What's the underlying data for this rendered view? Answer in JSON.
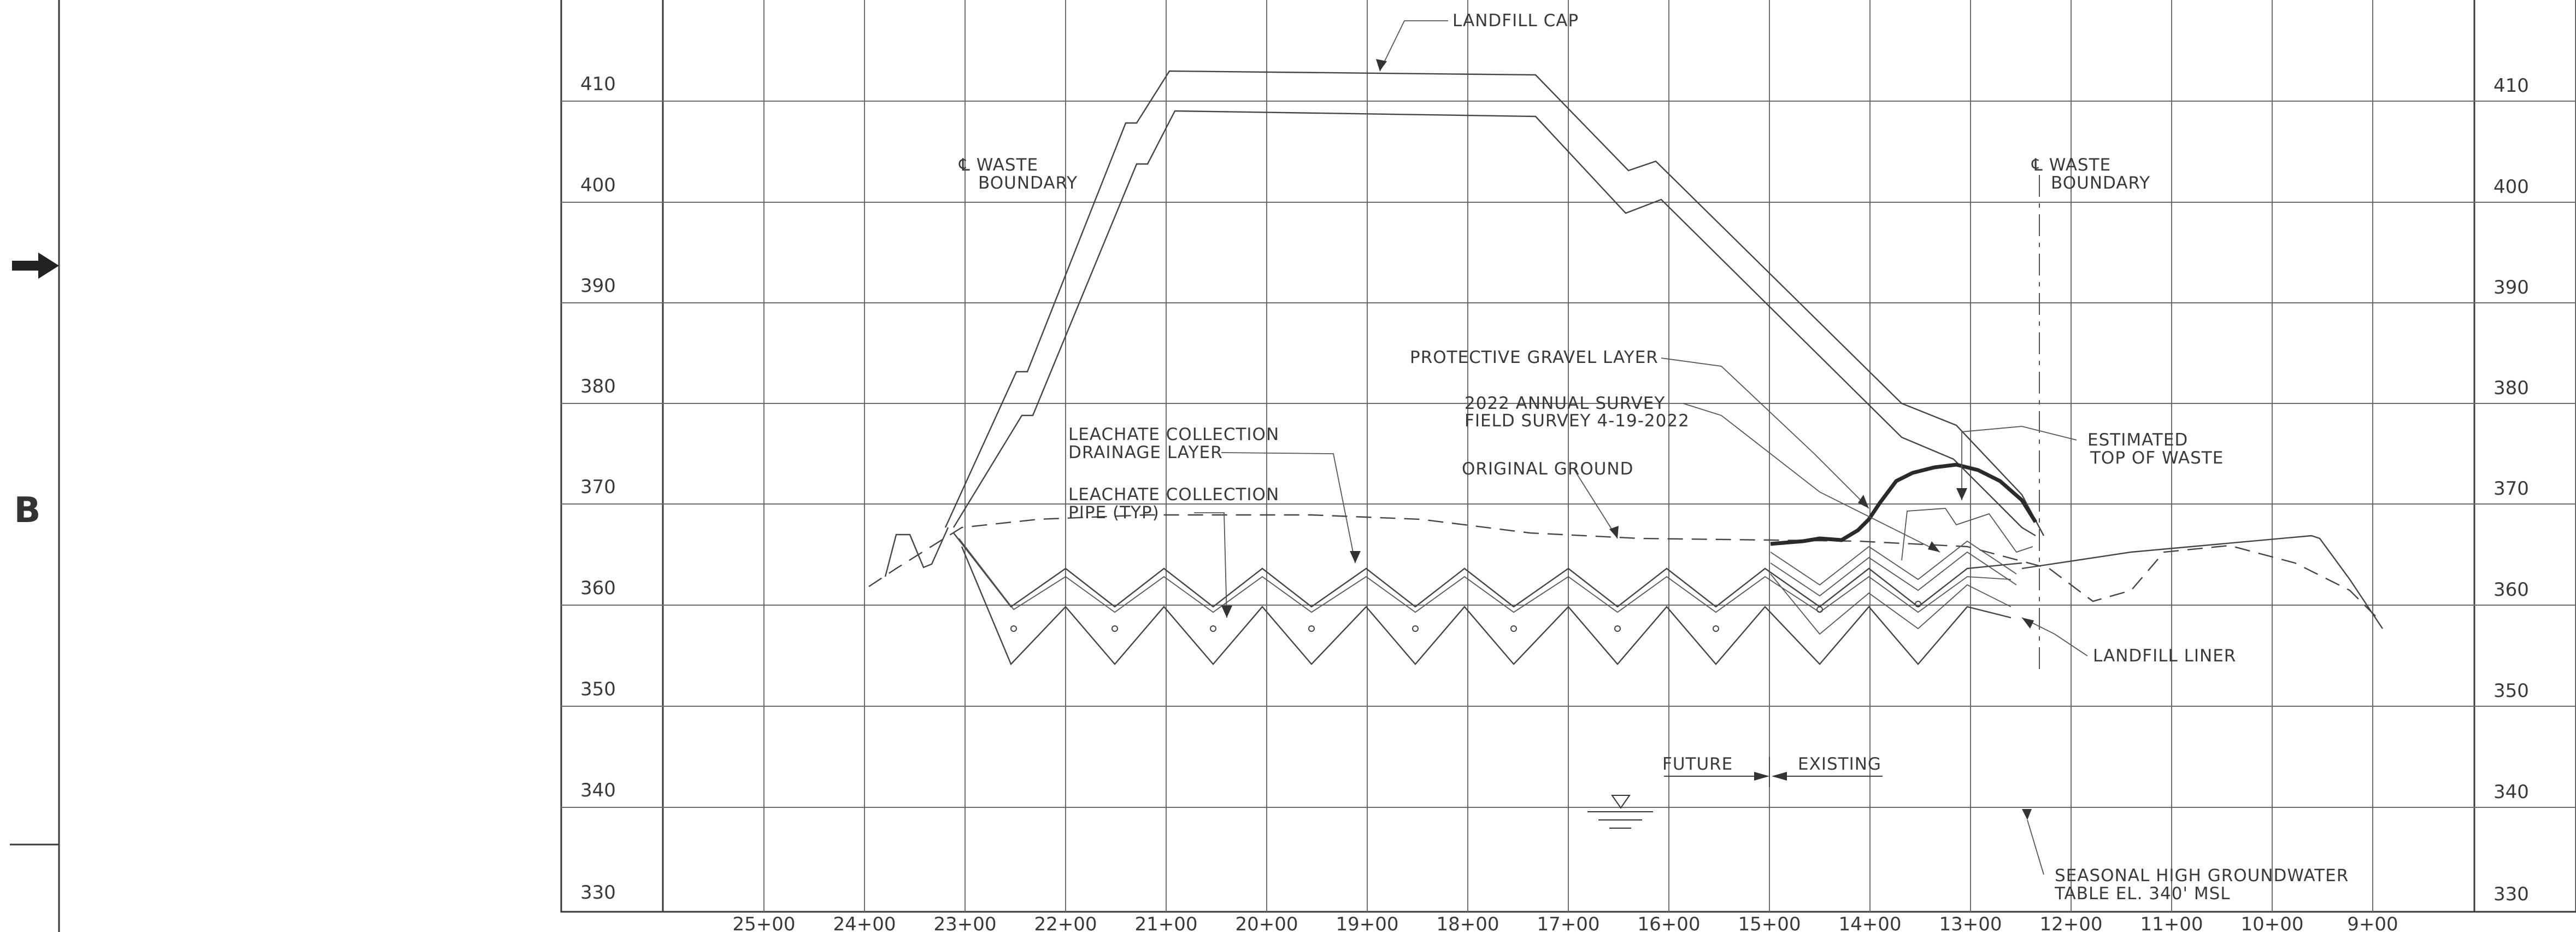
{
  "section_letter": "B",
  "elevation_ticks": [
    "410",
    "400",
    "390",
    "380",
    "370",
    "360",
    "350",
    "340",
    "330"
  ],
  "station_ticks": [
    "25+00",
    "24+00",
    "23+00",
    "22+00",
    "21+00",
    "20+00",
    "19+00",
    "18+00",
    "17+00",
    "16+00",
    "15+00",
    "14+00",
    "13+00",
    "12+00",
    "11+00",
    "10+00",
    "9+00"
  ],
  "labels": {
    "landfill_cap": "LANDFILL CAP",
    "waste_boundary_left_1": "℄ WASTE",
    "waste_boundary_left_2": "BOUNDARY",
    "waste_boundary_right_1": "℄ WASTE",
    "waste_boundary_right_2": "BOUNDARY",
    "protective_gravel": "PROTECTIVE GRAVEL LAYER",
    "survey_1": "2022 ANNUAL SURVEY",
    "survey_2": "FIELD SURVEY 4-19-2022",
    "original_ground": "ORIGINAL GROUND",
    "drainage_1": "LEACHATE COLLECTION",
    "drainage_2": "DRAINAGE LAYER",
    "pipe_1": "LEACHATE COLLECTION",
    "pipe_2": "PIPE (TYP)",
    "estimated_1": "ESTIMATED",
    "estimated_2": "TOP OF WASTE",
    "landfill_liner": "LANDFILL LINER",
    "future": "FUTURE",
    "existing": "EXISTING",
    "groundwater_1": "SEASONAL HIGH GROUNDWATER",
    "groundwater_2": "TABLE EL. 340' MSL"
  }
}
